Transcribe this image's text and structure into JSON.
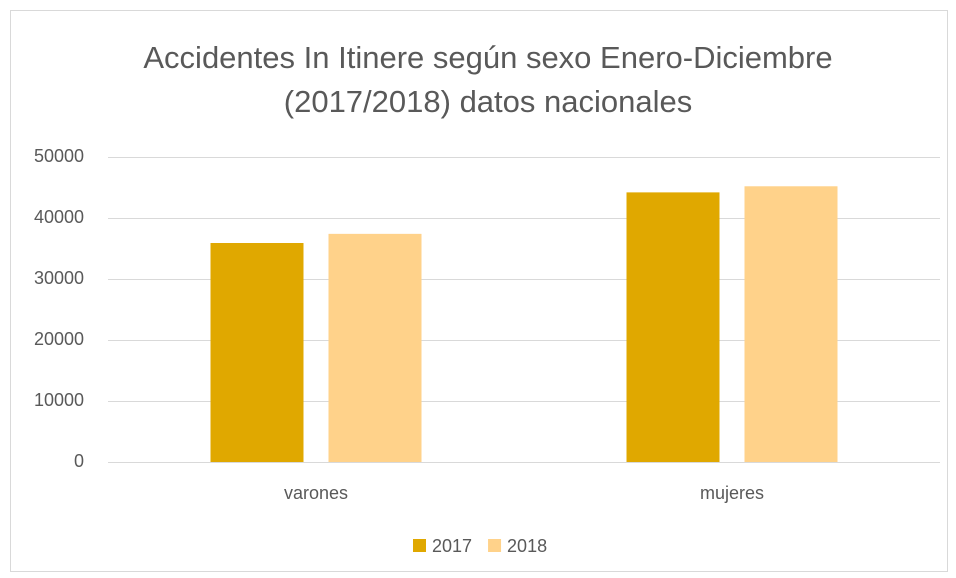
{
  "chart_data": {
    "type": "bar",
    "title": [
      "Accidentes In Itinere según sexo Enero-Diciembre",
      "(2017/2018) datos nacionales"
    ],
    "categories": [
      "varones",
      "mujeres"
    ],
    "series": [
      {
        "name": "2017",
        "color": "#e0a800",
        "values": [
          35900,
          44200
        ]
      },
      {
        "name": "2018",
        "color": "#ffd28a",
        "values": [
          37400,
          45200
        ]
      }
    ],
    "ylim": [
      0,
      50000
    ],
    "yticks": [
      0,
      10000,
      20000,
      30000,
      40000,
      50000
    ],
    "grid": true,
    "legend": "bottom"
  }
}
